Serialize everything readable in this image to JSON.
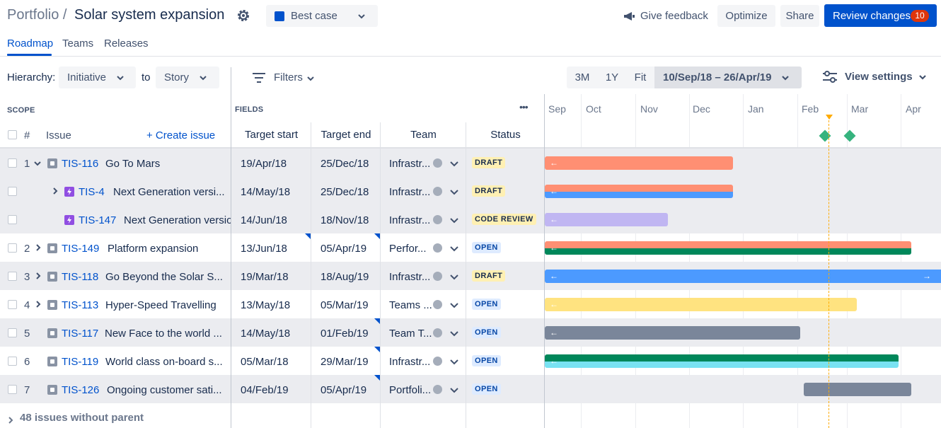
{
  "header": {
    "breadcrumb": "Portfolio /",
    "title": "Solar system expansion",
    "scenario": "Best case",
    "feedback": "Give feedback",
    "optimize": "Optimize",
    "share": "Share",
    "review_label": "Review changes",
    "review_count": "10"
  },
  "tabs": [
    "Roadmap",
    "Teams",
    "Releases"
  ],
  "toolbar": {
    "hierarchy_label": "Hierarchy:",
    "from": "Initiative",
    "to_label": "to",
    "to": "Story",
    "filters": "Filters",
    "zoom": [
      "3M",
      "1Y",
      "Fit"
    ],
    "range": "10/Sep/18 – 26/Apr/19",
    "view_settings": "View settings"
  },
  "table": {
    "scope": "SCOPE",
    "fields": "FIELDS",
    "more": "•••",
    "hash": "#",
    "issue": "Issue",
    "create": "+ Create issue",
    "col_start": "Target start",
    "col_end": "Target end",
    "col_team": "Team",
    "col_status": "Status"
  },
  "timeline": {
    "months": [
      "Sep",
      "Oct",
      "Nov",
      "Dec",
      "Jan",
      "Feb",
      "Mar",
      "Apr"
    ]
  },
  "rows": [
    {
      "num": "1",
      "key": "TIS-116",
      "summary": "Go To Mars",
      "start": "19/Apr/18",
      "end": "25/Dec/18",
      "team": "Infrastr...",
      "status": "DRAFT"
    },
    {
      "num": "",
      "key": "TIS-4",
      "summary": "Next Generation versi...",
      "start": "14/May/18",
      "end": "25/Dec/18",
      "team": "Infrastr...",
      "status": "DRAFT"
    },
    {
      "num": "",
      "key": "TIS-147",
      "summary": "Next Generation version",
      "start": "14/Jun/18",
      "end": "18/Nov/18",
      "team": "Infrastr...",
      "status": "CODE REVIEW"
    },
    {
      "num": "2",
      "key": "TIS-149",
      "summary": "Platform expansion",
      "start": "13/Jun/18",
      "end": "05/Apr/19",
      "team": "Perfor...",
      "status": "OPEN"
    },
    {
      "num": "3",
      "key": "TIS-118",
      "summary": "Go Beyond the Solar S...",
      "start": "19/Mar/18",
      "end": "18/Aug/19",
      "team": "Infrastr...",
      "status": "DRAFT"
    },
    {
      "num": "4",
      "key": "TIS-113",
      "summary": "Hyper-Speed Travelling",
      "start": "13/May/18",
      "end": "05/Mar/19",
      "team": "Teams ...",
      "status": "OPEN"
    },
    {
      "num": "5",
      "key": "TIS-117",
      "summary": "New Face to the world ...",
      "start": "14/May/18",
      "end": "01/Feb/19",
      "team": "Team T...",
      "status": "OPEN"
    },
    {
      "num": "6",
      "key": "TIS-119",
      "summary": "World class on-board s...",
      "start": "05/Mar/18",
      "end": "29/Mar/19",
      "team": "Infrastr...",
      "status": "OPEN"
    },
    {
      "num": "7",
      "key": "TIS-126",
      "summary": "Ongoing customer sati...",
      "start": "04/Feb/19",
      "end": "05/Apr/19",
      "team": "Portfoli...",
      "status": "OPEN"
    }
  ],
  "footer": {
    "without_parent": "48 issues without parent"
  },
  "colors": {
    "accent": "#0052CC",
    "bar_salmon": "#FF8F73",
    "bar_blue": "#4C9AFF",
    "bar_purple": "#C0B6F2",
    "bar_green": "#00875A",
    "bar_yellow": "#FFE380",
    "bar_grey": "#7A869A",
    "bar_teal": "#79E2F2"
  }
}
